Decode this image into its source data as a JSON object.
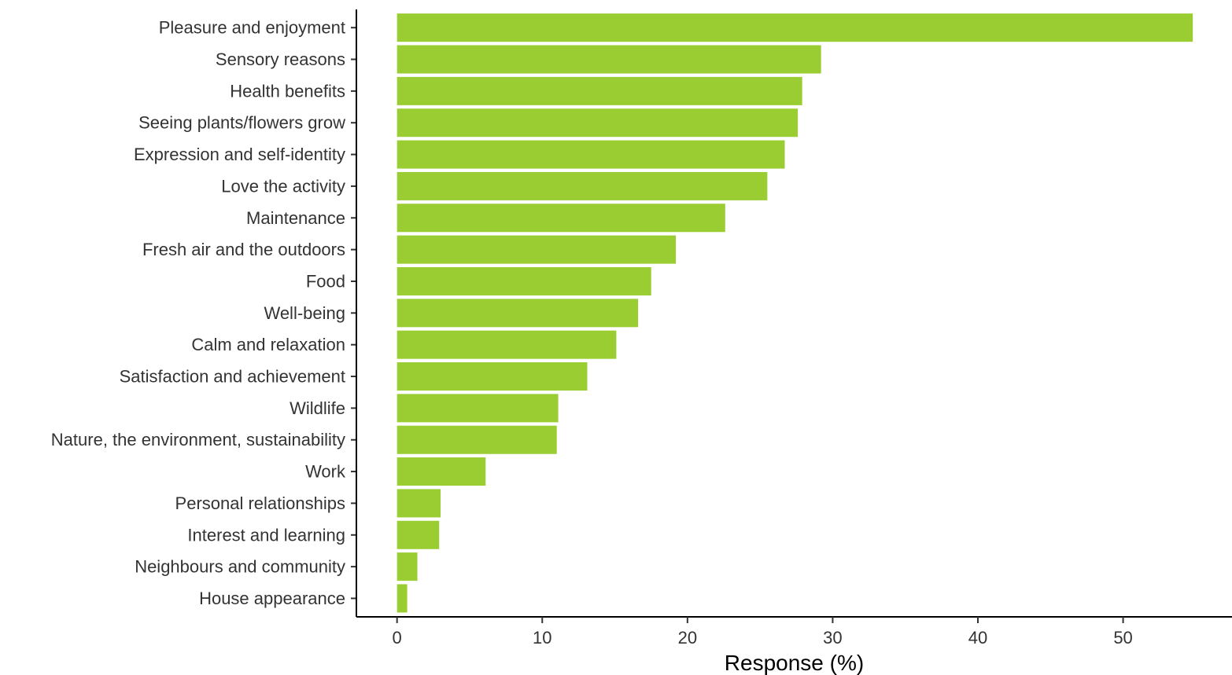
{
  "chart_data": {
    "type": "bar",
    "orientation": "horizontal",
    "categories": [
      "Pleasure and enjoyment",
      "Sensory reasons",
      "Health benefits",
      "Seeing plants/flowers grow",
      "Expression and self-identity",
      "Love the activity",
      "Maintenance",
      "Fresh air and the outdoors",
      "Food",
      "Well-being",
      "Calm and relaxation",
      "Satisfaction and achievement",
      "Wildlife",
      "Nature, the environment, sustainability",
      "Work",
      "Personal relationships",
      "Interest and learning",
      "Neighbours and community",
      "House appearance"
    ],
    "values": [
      54.8,
      29.2,
      27.9,
      27.6,
      26.7,
      25.5,
      22.6,
      19.2,
      17.5,
      16.6,
      15.1,
      13.1,
      11.1,
      11.0,
      6.1,
      3.0,
      2.9,
      1.4,
      0.7
    ],
    "xlabel": "Response (%)",
    "ylabel": "",
    "title": "",
    "xlim": [
      -2.8,
      57.5
    ],
    "xticks": [
      0,
      10,
      20,
      30,
      40,
      50
    ],
    "bar_color": "#9ACD32",
    "grid": false,
    "legend": "none"
  }
}
